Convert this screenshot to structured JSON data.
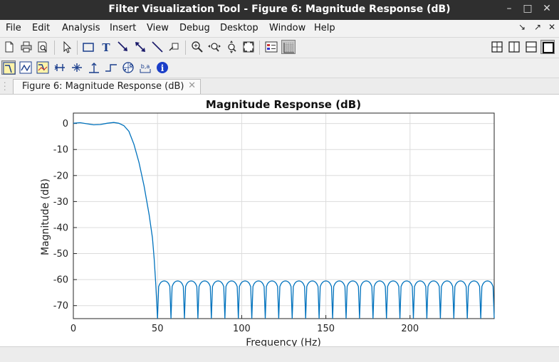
{
  "window": {
    "title": "Filter Visualization Tool - Figure 6: Magnitude Response (dB)",
    "controls": [
      "–",
      "□",
      "✕"
    ]
  },
  "menubar": {
    "items": [
      "File",
      "Edit",
      "Analysis",
      "Insert",
      "View",
      "Debug",
      "Desktop",
      "Window",
      "Help"
    ],
    "right_glyphs": [
      "↘",
      "↗",
      "✕"
    ]
  },
  "toolbar": {
    "icons": [
      "new-file-icon",
      "print-icon",
      "print-preview-icon",
      "pointer-icon",
      "rectangle-icon",
      "text-icon",
      "arrow-icon",
      "double-arrow-icon",
      "line-icon",
      "pin-icon",
      "zoom-in-icon",
      "zoom-x-icon",
      "zoom-y-icon",
      "full-view-icon",
      "legend-icon",
      "grid-icon",
      "tile-2x2-icon",
      "tile-vertical-icon",
      "tile-horizontal-icon",
      "single-layout-icon"
    ]
  },
  "analysis_toolbar": {
    "icons": [
      "magnitude-response-icon",
      "phase-response-icon",
      "magnitude-phase-icon",
      "group-delay-icon",
      "phase-delay-icon",
      "impulse-response-icon",
      "step-response-icon",
      "pole-zero-icon",
      "coefficients-icon",
      "filter-info-icon"
    ]
  },
  "tab": {
    "label": "Figure 6: Magnitude Response (dB)",
    "close": "✕"
  },
  "chart_data": {
    "type": "line",
    "title": "Magnitude Response (dB)",
    "xlabel": "Frequency (Hz)",
    "ylabel": "Magnitude (dB)",
    "xlim": [
      0,
      250
    ],
    "ylim": [
      -75,
      4
    ],
    "xticks": [
      0,
      50,
      100,
      150,
      200
    ],
    "yticks": [
      0,
      -10,
      -20,
      -30,
      -40,
      -50,
      -60,
      -70
    ],
    "grid": true,
    "series": [
      {
        "color": "#0072bd",
        "passband": {
          "x": [
            0,
            4,
            8,
            12,
            16,
            20,
            24,
            27,
            30,
            33,
            36,
            39,
            42,
            45,
            47,
            48,
            49,
            50
          ],
          "y": [
            0.1,
            0.3,
            -0.1,
            -0.5,
            -0.4,
            0.1,
            0.4,
            0.1,
            -0.8,
            -3,
            -8,
            -15,
            -24,
            -35,
            -44,
            -52,
            -62,
            -75
          ]
        },
        "stopband": {
          "start": 50,
          "end": 250,
          "lobe_width": 8,
          "peak_db": -60.5,
          "floor_db": -75
        }
      }
    ]
  }
}
